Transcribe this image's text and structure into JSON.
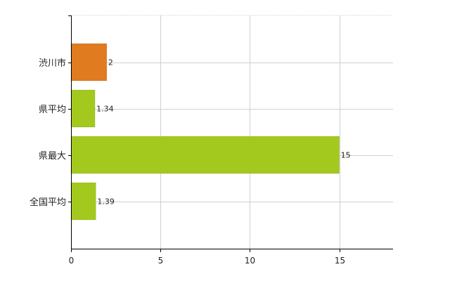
{
  "chart_data": {
    "type": "bar",
    "orientation": "horizontal",
    "categories": [
      "渋川市",
      "県平均",
      "県最大",
      "全国平均"
    ],
    "values": [
      2,
      1.34,
      15,
      1.39
    ],
    "data_labels": [
      "2",
      "1.34",
      "15",
      "1.39"
    ],
    "bar_colors": [
      "#e07b20",
      "#a3c91e",
      "#a3c91e",
      "#a3c91e"
    ],
    "xlim": [
      0,
      18
    ],
    "x_ticks": [
      0,
      5,
      10,
      15
    ],
    "x_tick_labels": [
      "0",
      "5",
      "10",
      "15"
    ],
    "grid": true,
    "legend": "none",
    "title": "",
    "xlabel": "",
    "ylabel": ""
  }
}
